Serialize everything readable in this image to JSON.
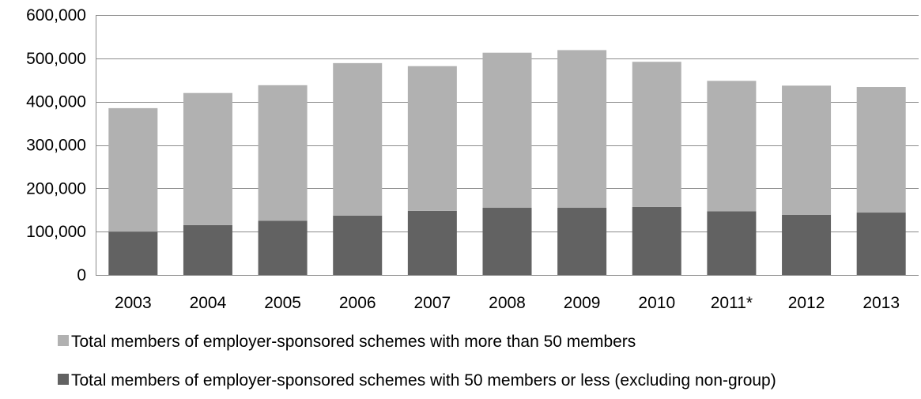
{
  "chart_data": {
    "type": "bar",
    "stacked": true,
    "categories": [
      "2003",
      "2004",
      "2005",
      "2006",
      "2007",
      "2008",
      "2009",
      "2010",
      "2011*",
      "2012",
      "2013"
    ],
    "series": [
      {
        "name": "Total members of employer-sponsored schemes with 50 members or less (excluding non-group)",
        "color": "#626262",
        "values": [
          100000,
          115000,
          125000,
          137000,
          148000,
          155000,
          155000,
          157000,
          147000,
          139000,
          144000
        ]
      },
      {
        "name": "Total members of employer-sponsored schemes with more than 50 members",
        "color": "#b1b1b1",
        "values": [
          285000,
          305000,
          313000,
          352000,
          334000,
          358000,
          364000,
          335000,
          301000,
          298000,
          290000
        ]
      }
    ],
    "ylim": [
      0,
      600000
    ],
    "yticks": [
      0,
      100000,
      200000,
      300000,
      400000,
      500000,
      600000
    ],
    "ytick_labels": [
      "0",
      "100,000",
      "200,000",
      "300,000",
      "400,000",
      "500,000",
      "600,000"
    ],
    "grid": true,
    "gridline_color": "#8c8c8c",
    "legend_position": "bottom",
    "legend_order": [
      1,
      0
    ],
    "title": "",
    "xlabel": "",
    "ylabel": ""
  }
}
